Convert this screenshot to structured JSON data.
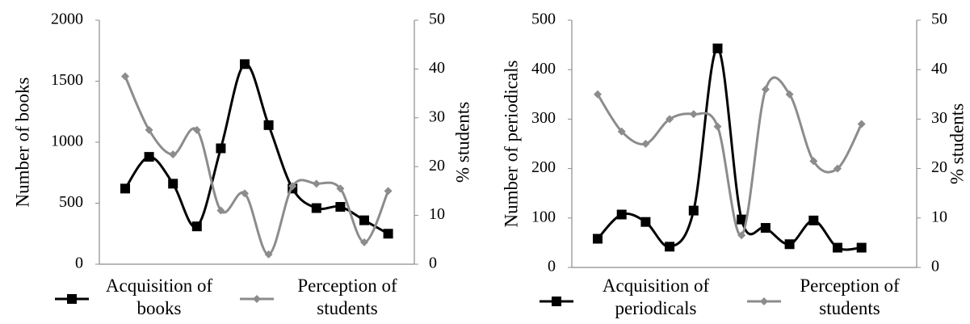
{
  "chart_data": [
    {
      "type": "line",
      "ylabel": "Number of books",
      "y2label": "% students",
      "ylim": [
        0,
        2000
      ],
      "yticks": [
        0,
        500,
        1000,
        1500,
        2000
      ],
      "y2lim": [
        0,
        50
      ],
      "y2ticks": [
        0,
        10,
        20,
        30,
        40,
        50
      ],
      "series": [
        {
          "name": "Acquisition of books",
          "color": "#000000",
          "marker": "square",
          "values": [
            620,
            880,
            660,
            310,
            950,
            1640,
            1140,
            620,
            460,
            470,
            360,
            250
          ]
        },
        {
          "name": "Perception of students",
          "color": "#8c8c8c",
          "marker": "diamond",
          "axis": "y2",
          "values": [
            38.5,
            27.5,
            22.5,
            27.5,
            11,
            14.5,
            2,
            16,
            16.5,
            15.5,
            4.5,
            15
          ]
        }
      ]
    },
    {
      "type": "line",
      "ylabel": "Number of periodicals",
      "y2label": "% students",
      "ylim": [
        0,
        500
      ],
      "yticks": [
        0,
        100,
        200,
        300,
        400,
        500
      ],
      "y2lim": [
        0,
        50
      ],
      "y2ticks": [
        0,
        10,
        20,
        30,
        40,
        50
      ],
      "series": [
        {
          "name": "Acquisition of periodicals",
          "color": "#000000",
          "marker": "square",
          "values": [
            58,
            107,
            92,
            42,
            115,
            443,
            97,
            80,
            47,
            95,
            40,
            40
          ]
        },
        {
          "name": "Perception of students",
          "color": "#8c8c8c",
          "marker": "diamond",
          "axis": "y2",
          "values": [
            35,
            27.5,
            25,
            30,
            31,
            28.5,
            6.5,
            36,
            35,
            21.5,
            20,
            29
          ]
        }
      ]
    }
  ]
}
